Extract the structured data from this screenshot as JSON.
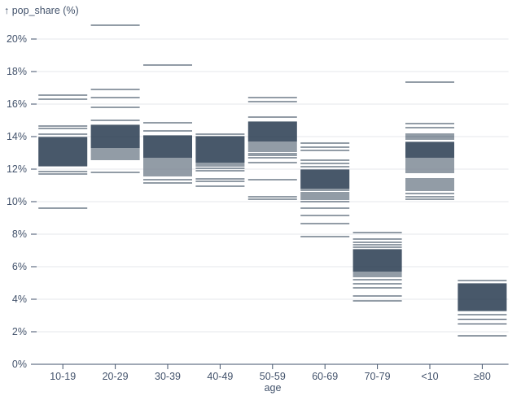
{
  "chart_data": {
    "type": "tick",
    "title": "",
    "y_title": "↑ pop_share (%)",
    "x_title": "age",
    "xlabel": "age",
    "ylabel": "pop_share (%)",
    "ylim": [
      0,
      21
    ],
    "grid": true,
    "legend": "none",
    "categories": [
      "10-19",
      "20-29",
      "30-39",
      "40-49",
      "50-59",
      "60-69",
      "70-79",
      "<10",
      "≥80"
    ],
    "y_axis_ticks": [
      {
        "value": 0,
        "label": "0%"
      },
      {
        "value": 2,
        "label": "2%"
      },
      {
        "value": 4,
        "label": "4%"
      },
      {
        "value": 6,
        "label": "6%"
      },
      {
        "value": 8,
        "label": "8%"
      },
      {
        "value": 10,
        "label": "10%"
      },
      {
        "value": 12,
        "label": "12%"
      },
      {
        "value": 14,
        "label": "14%"
      },
      {
        "value": 16,
        "label": "16%"
      },
      {
        "value": 18,
        "label": "18%"
      },
      {
        "value": 20,
        "label": "20%"
      }
    ],
    "series": [
      {
        "category": "10-19",
        "values": [
          16.55,
          16.3,
          14.65,
          14.5,
          14.15,
          13.95,
          13.9,
          13.85,
          13.8,
          13.75,
          13.7,
          13.65,
          13.6,
          13.55,
          13.5,
          13.45,
          13.4,
          13.35,
          13.3,
          13.25,
          13.2,
          13.15,
          13.1,
          13.05,
          13.0,
          12.95,
          12.9,
          12.85,
          12.8,
          12.75,
          12.7,
          12.65,
          12.6,
          12.55,
          12.5,
          12.45,
          12.4,
          12.35,
          12.3,
          12.25,
          12.2,
          11.85,
          11.7,
          9.6
        ]
      },
      {
        "category": "20-29",
        "values": [
          20.85,
          16.9,
          16.4,
          15.8,
          15.0,
          14.7,
          14.65,
          14.6,
          14.55,
          14.5,
          14.45,
          14.4,
          14.35,
          14.3,
          14.25,
          14.2,
          14.15,
          14.1,
          14.05,
          14.0,
          13.95,
          13.9,
          13.85,
          13.8,
          13.75,
          13.7,
          13.65,
          13.6,
          13.55,
          13.5,
          13.45,
          13.4,
          13.35,
          13.3,
          13.2,
          13.1,
          13.0,
          12.9,
          12.8,
          12.7,
          12.6,
          11.8
        ]
      },
      {
        "category": "30-39",
        "values": [
          18.4,
          14.85,
          14.35,
          14.05,
          14.0,
          13.95,
          13.9,
          13.85,
          13.8,
          13.75,
          13.7,
          13.65,
          13.6,
          13.55,
          13.5,
          13.45,
          13.4,
          13.35,
          13.3,
          13.25,
          13.2,
          13.15,
          13.1,
          13.05,
          13.0,
          12.95,
          12.9,
          12.85,
          12.8,
          12.75,
          12.7,
          12.6,
          12.5,
          12.4,
          12.3,
          12.2,
          12.1,
          12.0,
          11.9,
          11.8,
          11.7,
          11.6,
          11.35,
          11.15
        ]
      },
      {
        "category": "40-49",
        "values": [
          14.15,
          14.0,
          13.95,
          13.9,
          13.85,
          13.8,
          13.75,
          13.7,
          13.65,
          13.6,
          13.55,
          13.5,
          13.45,
          13.4,
          13.35,
          13.3,
          13.25,
          13.2,
          13.15,
          13.1,
          13.05,
          13.0,
          12.95,
          12.9,
          12.85,
          12.8,
          12.75,
          12.7,
          12.65,
          12.6,
          12.55,
          12.5,
          12.45,
          12.4,
          12.3,
          12.2,
          12.05,
          11.9,
          11.4,
          11.25,
          10.95
        ]
      },
      {
        "category": "50-59",
        "values": [
          16.4,
          16.15,
          15.2,
          14.9,
          14.85,
          14.8,
          14.75,
          14.7,
          14.65,
          14.6,
          14.55,
          14.5,
          14.45,
          14.4,
          14.35,
          14.3,
          14.25,
          14.2,
          14.15,
          14.1,
          14.05,
          14.0,
          13.95,
          13.9,
          13.85,
          13.8,
          13.75,
          13.7,
          13.6,
          13.5,
          13.4,
          13.3,
          13.2,
          13.1,
          12.95,
          12.85,
          12.7,
          12.4,
          11.35,
          10.3,
          10.15
        ]
      },
      {
        "category": "60-69",
        "values": [
          13.6,
          13.35,
          13.15,
          12.55,
          12.35,
          12.15,
          11.95,
          11.9,
          11.85,
          11.8,
          11.75,
          11.7,
          11.65,
          11.6,
          11.55,
          11.5,
          11.45,
          11.4,
          11.35,
          11.3,
          11.25,
          11.2,
          11.15,
          11.1,
          11.05,
          11.0,
          10.95,
          10.9,
          10.85,
          10.8,
          10.7,
          10.55,
          10.45,
          10.35,
          10.25,
          10.15,
          10.0,
          9.6,
          9.15,
          8.65,
          7.85
        ]
      },
      {
        "category": "70-79",
        "values": [
          8.1,
          7.7,
          7.5,
          7.35,
          7.2,
          7.05,
          7.0,
          6.95,
          6.9,
          6.85,
          6.8,
          6.75,
          6.7,
          6.65,
          6.6,
          6.55,
          6.5,
          6.45,
          6.4,
          6.35,
          6.3,
          6.25,
          6.2,
          6.15,
          6.1,
          6.05,
          6.0,
          5.95,
          5.9,
          5.85,
          5.8,
          5.75,
          5.7,
          5.6,
          5.5,
          5.4,
          5.2,
          4.95,
          4.7,
          4.2,
          3.9
        ]
      },
      {
        "category": "<10",
        "values": [
          17.35,
          14.8,
          14.55,
          14.15,
          14.05,
          13.95,
          13.85,
          13.65,
          13.6,
          13.55,
          13.5,
          13.45,
          13.4,
          13.35,
          13.3,
          13.25,
          13.2,
          13.15,
          13.1,
          13.05,
          13.0,
          12.95,
          12.9,
          12.85,
          12.8,
          12.75,
          12.7,
          12.6,
          12.5,
          12.4,
          12.3,
          12.2,
          12.1,
          12.0,
          11.9,
          11.8,
          11.4,
          11.3,
          11.2,
          11.1,
          11.0,
          10.9,
          10.8,
          10.7,
          10.5,
          10.3,
          10.15
        ]
      },
      {
        "category": "≥80",
        "values": [
          5.15,
          4.95,
          4.9,
          4.85,
          4.8,
          4.75,
          4.7,
          4.65,
          4.6,
          4.55,
          4.5,
          4.45,
          4.4,
          4.35,
          4.3,
          4.25,
          4.2,
          4.15,
          4.1,
          4.05,
          4.0,
          3.95,
          3.9,
          3.85,
          3.8,
          3.75,
          3.7,
          3.65,
          3.6,
          3.55,
          3.5,
          3.45,
          3.4,
          3.35,
          3.3,
          3.05,
          2.77,
          2.48,
          1.75
        ]
      }
    ],
    "colors": {
      "tick": "#26384d",
      "tick_opacity": 0.8,
      "grid": "#e4e7eb",
      "axis": "#42526b",
      "text": "#42526b",
      "background": "#ffffff"
    }
  }
}
